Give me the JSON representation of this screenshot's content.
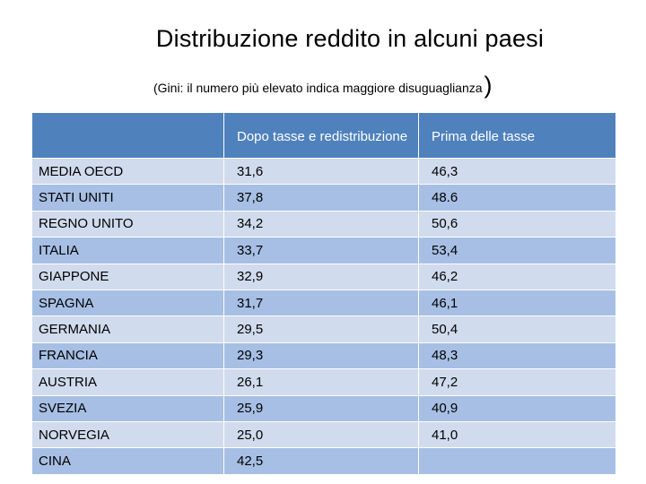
{
  "title": "Distribuzione reddito in alcuni paesi",
  "subtitle": {
    "text": "(Gini: il numero più elevato indica maggiore disuguaglianza",
    "close_paren": ")"
  },
  "table": {
    "headers": [
      "",
      "Dopo tasse e redistribuzione",
      "Prima delle tasse"
    ],
    "rows": [
      {
        "country": "MEDIA OECD",
        "after_tax": "31,6",
        "before_tax": "46,3"
      },
      {
        "country": "STATI UNITI",
        "after_tax": "37,8",
        "before_tax": "48.6"
      },
      {
        "country": "REGNO UNITO",
        "after_tax": "34,2",
        "before_tax": "50,6"
      },
      {
        "country": "ITALIA",
        "after_tax": "33,7",
        "before_tax": "53,4"
      },
      {
        "country": "GIAPPONE",
        "after_tax": "32,9",
        "before_tax": "46,2"
      },
      {
        "country": "SPAGNA",
        "after_tax": "31,7",
        "before_tax": "46,1"
      },
      {
        "country": "GERMANIA",
        "after_tax": "29,5",
        "before_tax": "50,4"
      },
      {
        "country": "FRANCIA",
        "after_tax": "29,3",
        "before_tax": "48,3"
      },
      {
        "country": "AUSTRIA",
        "after_tax": "26,1",
        "before_tax": "47,2"
      },
      {
        "country": "SVEZIA",
        "after_tax": "25,9",
        "before_tax": "40,9"
      },
      {
        "country": "NORVEGIA",
        "after_tax": "25,0",
        "before_tax": "41,0"
      },
      {
        "country": "CINA",
        "after_tax": "42,5",
        "before_tax": ""
      }
    ]
  },
  "colors": {
    "header_bg": "#4f81bd",
    "header_text": "#ffffff",
    "row_light": "#d0dbed",
    "row_dark": "#a7bfe4"
  }
}
